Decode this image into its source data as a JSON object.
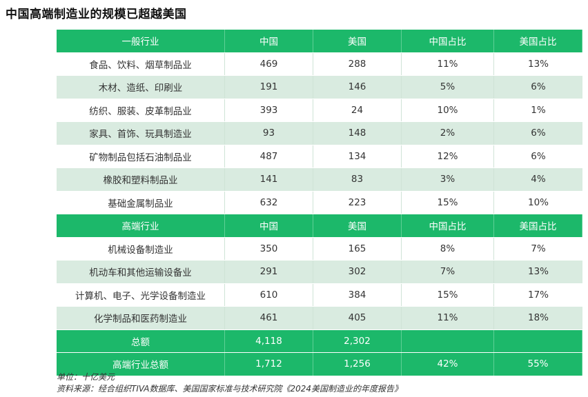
{
  "title": "中国高端制造业的规模已超越美国",
  "chart_data": {
    "type": "table",
    "sections": [
      {
        "header": [
          "一般行业",
          "中国",
          "美国",
          "中国占比",
          "美国占比"
        ],
        "rows": [
          [
            "食品、饮料、烟草制品业",
            "469",
            "288",
            "11%",
            "13%"
          ],
          [
            "木材、造纸、印刷业",
            "191",
            "146",
            "5%",
            "6%"
          ],
          [
            "纺织、服装、皮革制品业",
            "393",
            "24",
            "10%",
            "1%"
          ],
          [
            "家具、首饰、玩具制造业",
            "93",
            "148",
            "2%",
            "6%"
          ],
          [
            "矿物制品包括石油制品业",
            "487",
            "134",
            "12%",
            "6%"
          ],
          [
            "橡胶和塑料制品业",
            "141",
            "83",
            "3%",
            "4%"
          ],
          [
            "基础金属制品业",
            "632",
            "223",
            "15%",
            "10%"
          ]
        ]
      },
      {
        "header": [
          "高端行业",
          "中国",
          "美国",
          "中国占比",
          "美国占比"
        ],
        "rows": [
          [
            "机械设备制造业",
            "350",
            "165",
            "8%",
            "7%"
          ],
          [
            "机动车和其他运输设备业",
            "291",
            "302",
            "7%",
            "13%"
          ],
          [
            "计算机、电子、光学设备制造业",
            "610",
            "384",
            "15%",
            "17%"
          ],
          [
            "化学制品和医药制造业",
            "461",
            "405",
            "11%",
            "18%"
          ]
        ]
      }
    ],
    "totals": [
      [
        "总额",
        "4,118",
        "2,302",
        "",
        ""
      ],
      [
        "高端行业总额",
        "1,712",
        "1,256",
        "42%",
        "55%"
      ]
    ]
  },
  "notes": {
    "unit": "单位：十亿美元",
    "source": "资料来源：经合组织TIVA数据库、美国国家标准与技术研究院《2024美国制造业的年度报告》"
  },
  "colors": {
    "header_green": "#1cb86a",
    "stripe_green": "#d9ebe0"
  }
}
